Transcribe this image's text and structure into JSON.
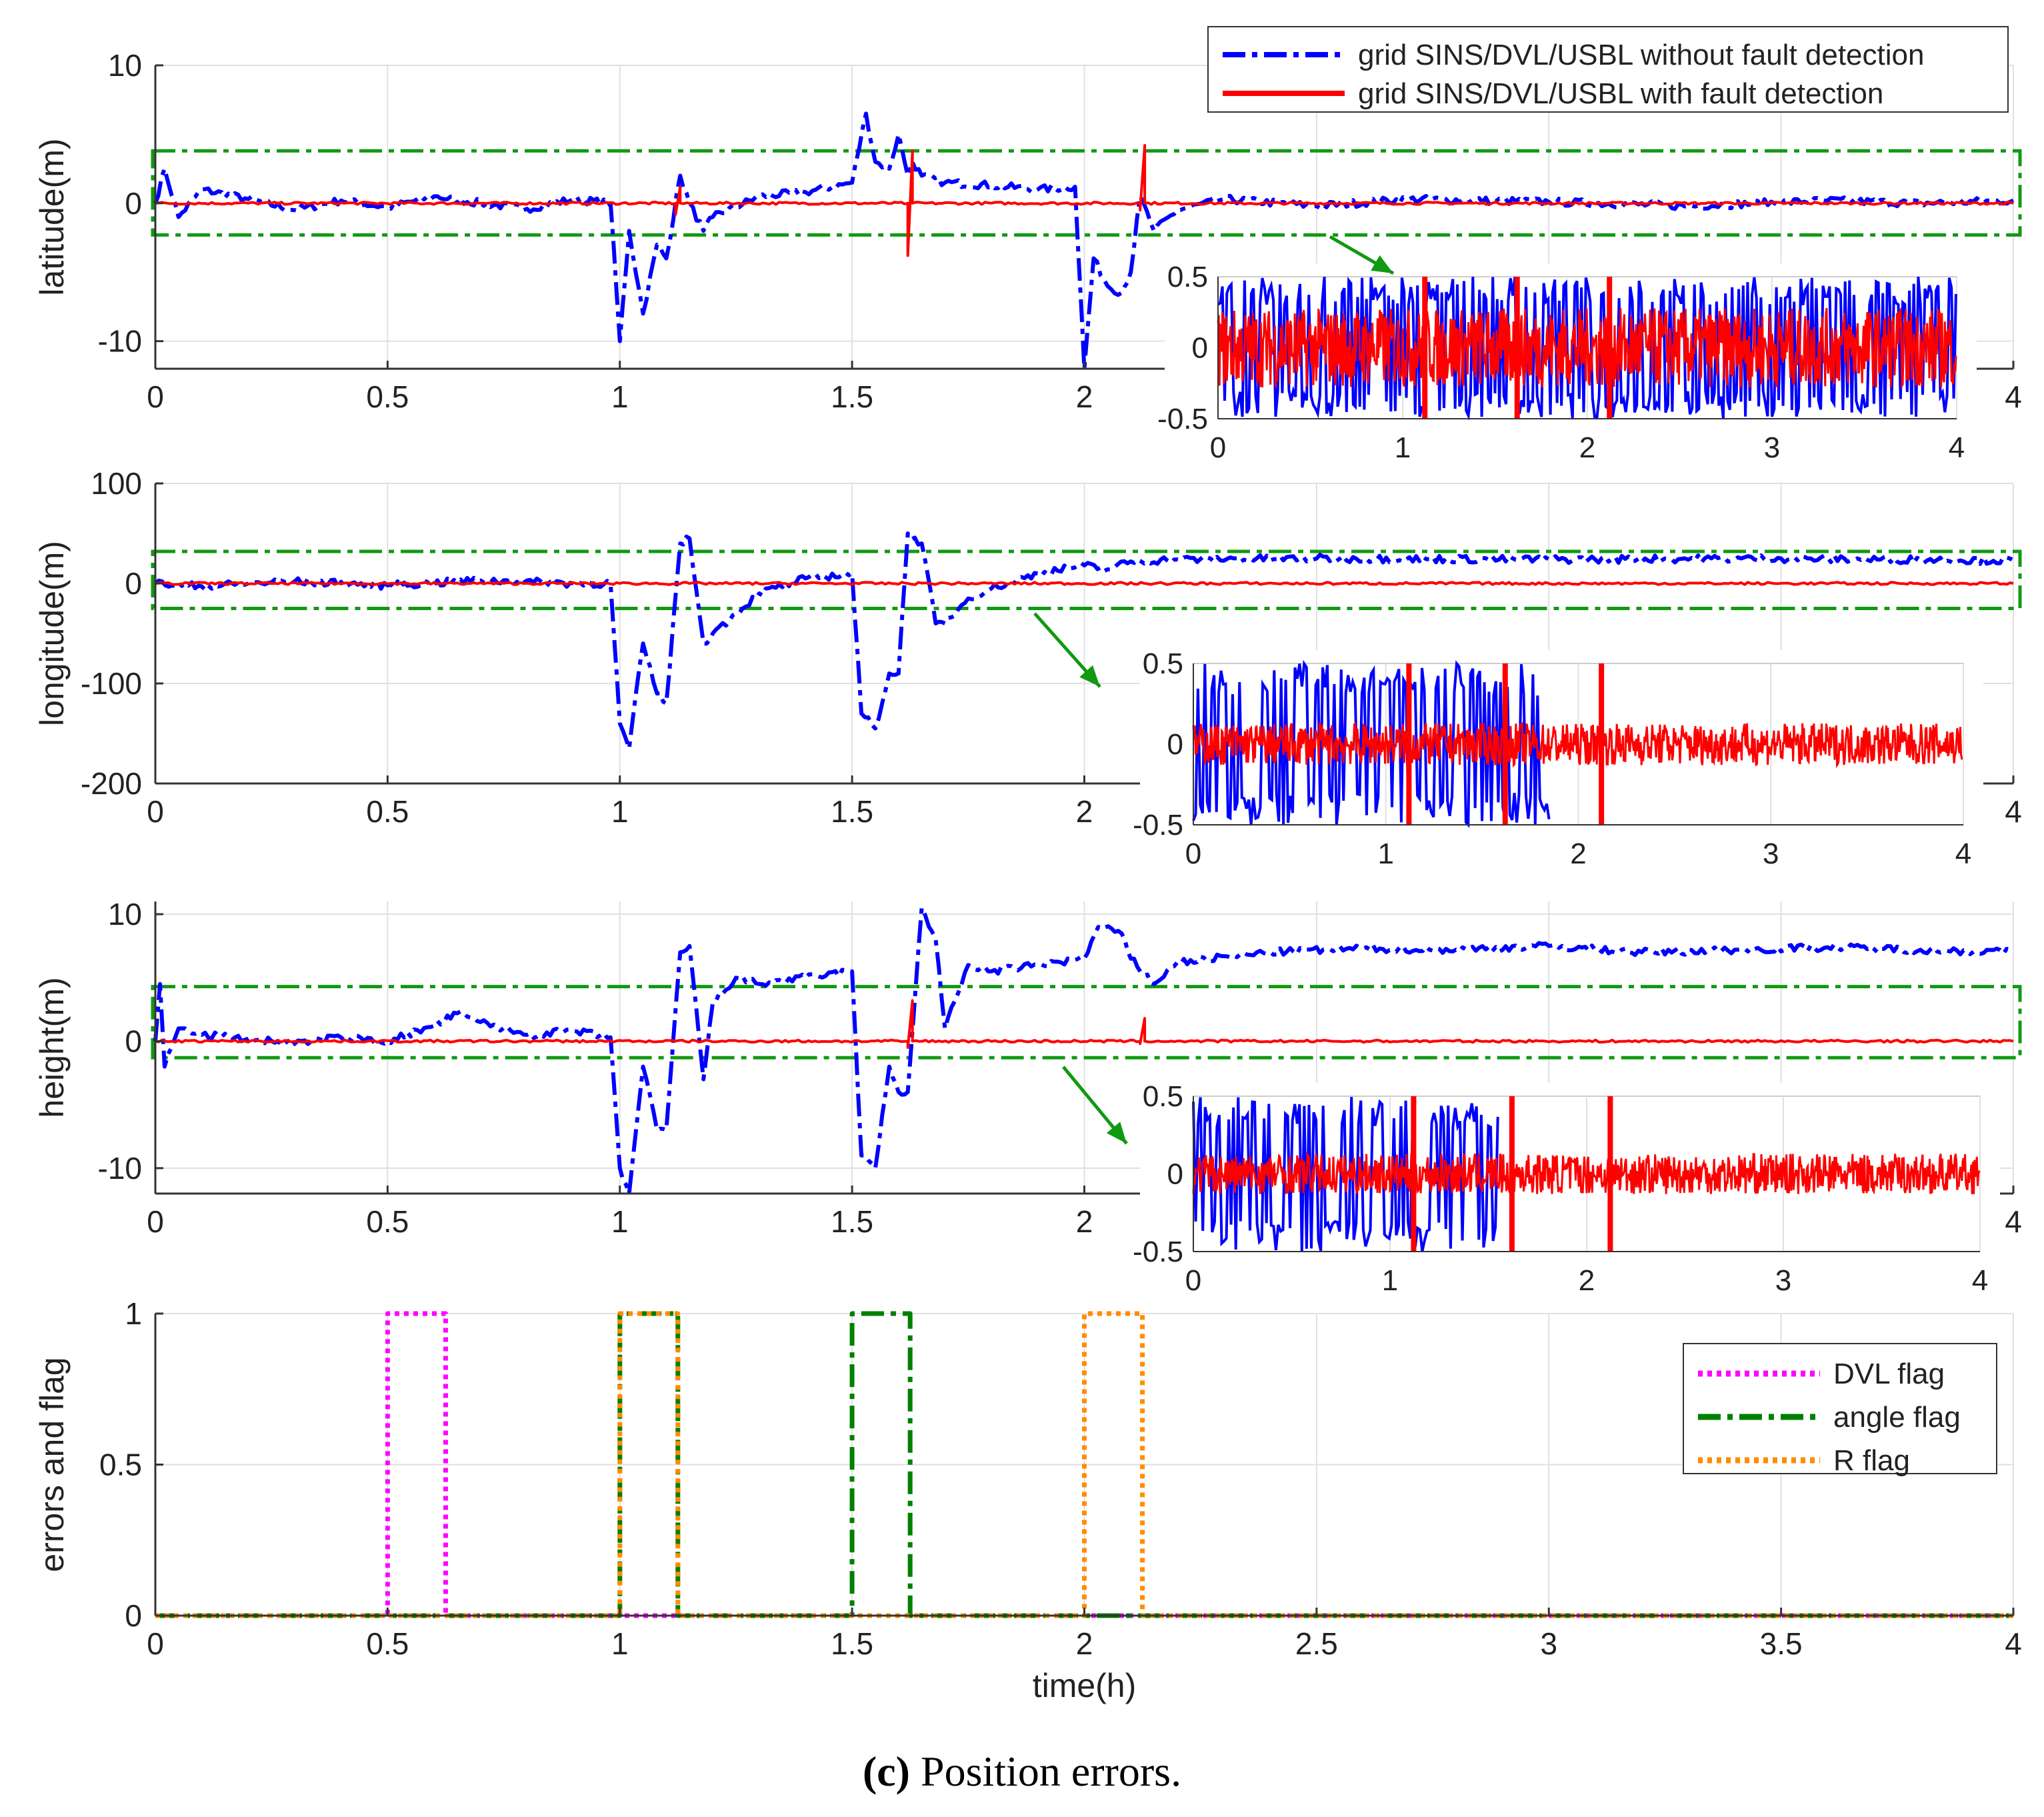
{
  "figure": {
    "caption_label": "(c)",
    "caption_text": "Position errors."
  },
  "colors": {
    "without": "#0000ff",
    "with": "#ff0000",
    "box": "#119911",
    "dvl": "#ff00ff",
    "angle": "#008000",
    "rflag": "#ff8c00",
    "grid": "#e0e0e0"
  },
  "chart_data": [
    {
      "id": "latitude",
      "type": "line",
      "ylabel": "latitude(m)",
      "xlim": [
        0,
        4
      ],
      "ylim": [
        -12,
        10
      ],
      "yticks": [
        -10,
        0,
        10
      ],
      "xticks": [
        0,
        0.5,
        1,
        1.5,
        2,
        2.5,
        3,
        3.5,
        4
      ],
      "xtick_labels": [
        "0",
        "0.5",
        "1",
        "1.5",
        "2",
        "",
        "",
        "",
        "4"
      ],
      "legend": [
        {
          "label": "grid SINS/DVL/USBL without fault detection",
          "color": "#0000ff",
          "style": "dashdot"
        },
        {
          "label": "grid SINS/DVL/USBL with fault detection",
          "color": "#ff0000",
          "style": "solid"
        }
      ],
      "dashed_box_y": [
        -2.3,
        3.8
      ],
      "series": [
        {
          "name": "grid SINS/DVL/USBL without fault detection",
          "color": "#0000ff",
          "style": "dashdot",
          "x": [
            0,
            0.02,
            0.05,
            0.1,
            0.2,
            0.3,
            0.4,
            0.5,
            0.6,
            0.7,
            0.8,
            0.9,
            0.98,
            1.0,
            1.02,
            1.05,
            1.08,
            1.1,
            1.13,
            1.15,
            1.18,
            1.2,
            1.3,
            1.4,
            1.5,
            1.53,
            1.55,
            1.58,
            1.6,
            1.62,
            1.63,
            1.65,
            1.7,
            1.8,
            1.9,
            1.98,
            2.0,
            2.02,
            2.05,
            2.08,
            2.1,
            2.12,
            2.15,
            2.2,
            2.3,
            2.5,
            2.7,
            3.0,
            3.3,
            3.6,
            3.8,
            4.0
          ],
          "y": [
            0,
            2.5,
            -1,
            1,
            0.3,
            -0.5,
            0.2,
            -0.3,
            0.5,
            0,
            -0.4,
            0.3,
            0,
            -10,
            -2,
            -8,
            -3,
            -4,
            2,
            0,
            -2,
            -1,
            0.5,
            0.8,
            1.5,
            6.5,
            3,
            2.5,
            5,
            2,
            3,
            2,
            1.5,
            1.3,
            1.0,
            1.2,
            -12,
            -4,
            -6,
            -6.5,
            -5,
            0.5,
            -2,
            -0.5,
            0.3,
            -0.2,
            0.3,
            0.1,
            -0.2,
            0.2,
            0,
            0.2
          ]
        },
        {
          "name": "grid SINS/DVL/USBL with fault detection",
          "color": "#ff0000",
          "style": "solid",
          "x": [
            0,
            1.12,
            1.12,
            1.13,
            1.13,
            1.62,
            1.62,
            1.63,
            1.63,
            2.12,
            2.12,
            2.13,
            2.13,
            4.0
          ],
          "y": [
            0,
            0,
            -0.8,
            1.2,
            0,
            0,
            -3.8,
            3.8,
            0,
            0,
            -0.5,
            4.2,
            0,
            0
          ]
        }
      ],
      "inset": {
        "xlim": [
          0,
          4
        ],
        "ylim": [
          -0.5,
          0.5
        ],
        "xticks": [
          0,
          1,
          2,
          3,
          4
        ],
        "yticks": [
          -0.5,
          0,
          0.5
        ],
        "ytick_labels": [
          "-0.5",
          "0",
          "0.5"
        ]
      }
    },
    {
      "id": "longitude",
      "type": "line",
      "ylabel": "longitude(m)",
      "xlim": [
        0,
        4
      ],
      "ylim": [
        -200,
        100
      ],
      "yticks": [
        -200,
        -100,
        0,
        100
      ],
      "xticks": [
        0,
        0.5,
        1,
        1.5,
        2,
        2.5,
        3,
        3.5,
        4
      ],
      "xtick_labels": [
        "0",
        "0.5",
        "1",
        "1.5",
        "2",
        "",
        "",
        "",
        "4"
      ],
      "dashed_box_y": [
        -25,
        32
      ],
      "series": [
        {
          "name": "grid SINS/DVL/USBL without fault detection",
          "color": "#0000ff",
          "style": "dashdot",
          "x": [
            0,
            0.1,
            0.2,
            0.3,
            0.5,
            0.7,
            0.9,
            0.98,
            1.0,
            1.02,
            1.05,
            1.08,
            1.1,
            1.13,
            1.15,
            1.18,
            1.2,
            1.25,
            1.3,
            1.4,
            1.5,
            1.52,
            1.55,
            1.58,
            1.6,
            1.62,
            1.65,
            1.68,
            1.7,
            1.75,
            1.8,
            1.9,
            2.0,
            2.05,
            2.1,
            2.2,
            2.5,
            3.0,
            3.5,
            4.0
          ],
          "y": [
            0,
            -3,
            0,
            2,
            -2,
            3,
            0,
            0,
            -140,
            -165,
            -60,
            -110,
            -120,
            40,
            45,
            -60,
            -50,
            -30,
            -10,
            5,
            10,
            -130,
            -145,
            -90,
            -90,
            50,
            40,
            -40,
            -40,
            -15,
            -5,
            10,
            18,
            14,
            22,
            24,
            25,
            24,
            25,
            23
          ]
        },
        {
          "name": "grid SINS/DVL/USBL with fault detection",
          "color": "#ff0000",
          "style": "solid",
          "x": [
            0,
            1.0,
            2.0,
            3.0,
            4.0
          ],
          "y": [
            0,
            0,
            0,
            0,
            0
          ]
        }
      ],
      "inset": {
        "xlim": [
          0,
          4
        ],
        "ylim": [
          -0.5,
          0.5
        ],
        "xticks": [
          0,
          1,
          2,
          3,
          4
        ],
        "yticks": [
          -0.5,
          0,
          0.5
        ],
        "ytick_labels": [
          "-0.5",
          "0",
          "0.5"
        ]
      }
    },
    {
      "id": "height",
      "type": "line",
      "ylabel": "height(m)",
      "xlim": [
        0,
        4
      ],
      "ylim": [
        -12,
        11
      ],
      "yticks": [
        -10,
        0,
        10
      ],
      "xticks": [
        0,
        0.5,
        1,
        1.5,
        2,
        2.5,
        3,
        3.5,
        4
      ],
      "xtick_labels": [
        "0",
        "0.5",
        "1",
        "1.5",
        "2",
        "",
        "",
        "",
        "4"
      ],
      "dashed_box_y": [
        -1.3,
        4.3
      ],
      "series": [
        {
          "name": "grid SINS/DVL/USBL without fault detection",
          "color": "#0000ff",
          "style": "dashdot",
          "x": [
            0,
            0.01,
            0.02,
            0.05,
            0.1,
            0.2,
            0.3,
            0.4,
            0.5,
            0.6,
            0.65,
            0.7,
            0.8,
            0.9,
            0.98,
            1.0,
            1.02,
            1.05,
            1.08,
            1.1,
            1.13,
            1.15,
            1.18,
            1.2,
            1.25,
            1.3,
            1.4,
            1.5,
            1.52,
            1.55,
            1.58,
            1.6,
            1.62,
            1.65,
            1.68,
            1.7,
            1.75,
            1.8,
            1.9,
            2.0,
            2.03,
            2.08,
            2.1,
            2.15,
            2.2,
            2.4,
            2.6,
            2.8,
            3.0,
            3.2,
            3.4,
            3.6,
            3.8,
            4.0
          ],
          "y": [
            0,
            4.5,
            -2,
            1,
            0.5,
            0.2,
            -0.2,
            0.3,
            0,
            1.2,
            2.2,
            1.5,
            0.5,
            0.8,
            0.3,
            -10,
            -12,
            -2,
            -7,
            -7,
            7,
            7.5,
            -3,
            3,
            5,
            4.5,
            5,
            5.5,
            -9,
            -10,
            -2,
            -4,
            -4,
            10.5,
            8,
            1,
            6,
            5.5,
            6,
            6.5,
            9,
            8.5,
            6.5,
            4.5,
            6.2,
            7,
            7.3,
            7.2,
            7.5,
            7,
            7.2,
            7.4,
            7.2,
            7
          ]
        },
        {
          "name": "grid SINS/DVL/USBL with fault detection",
          "color": "#ff0000",
          "style": "solid",
          "x": [
            0,
            1.62,
            1.62,
            1.63,
            1.63,
            2.12,
            2.12,
            2.13,
            2.13,
            4.0
          ],
          "y": [
            0,
            0,
            -0.5,
            3.2,
            0,
            0,
            -0.2,
            1.8,
            0,
            0
          ]
        }
      ],
      "inset": {
        "xlim": [
          0,
          4
        ],
        "ylim": [
          -0.5,
          0.5
        ],
        "xticks": [
          0,
          1,
          2,
          3,
          4
        ],
        "yticks": [
          -0.5,
          0,
          0.5
        ],
        "ytick_labels": [
          "-0.5",
          "0",
          "0.5"
        ]
      }
    },
    {
      "id": "flags",
      "type": "line",
      "ylabel": "errors and flag",
      "xlabel": "time(h)",
      "xlim": [
        0,
        4
      ],
      "ylim": [
        0,
        1
      ],
      "yticks": [
        0,
        0.5,
        1
      ],
      "xticks": [
        0,
        0.5,
        1,
        1.5,
        2,
        2.5,
        3,
        3.5,
        4
      ],
      "xtick_labels": [
        "0",
        "0.5",
        "1",
        "1.5",
        "2",
        "2.5",
        "3",
        "3.5",
        "4"
      ],
      "legend": [
        {
          "label": "DVL flag",
          "color": "#ff00ff",
          "style": "dotted"
        },
        {
          "label": "angle flag",
          "color": "#008000",
          "style": "dashdot"
        },
        {
          "label": "R flag",
          "color": "#ff8c00",
          "style": "dotted"
        }
      ],
      "series": [
        {
          "name": "DVL flag",
          "color": "#ff00ff",
          "style": "dotted",
          "x": [
            0,
            0.5,
            0.5,
            0.625,
            0.625,
            4.0
          ],
          "y": [
            0,
            0,
            1,
            1,
            0,
            0
          ]
        },
        {
          "name": "angle flag",
          "color": "#008000",
          "style": "dashdot",
          "x": [
            0,
            1.0,
            1.0,
            1.125,
            1.125,
            1.5,
            1.5,
            1.625,
            1.625,
            4.0
          ],
          "y": [
            0,
            0,
            1,
            1,
            0,
            0,
            1,
            1,
            0,
            0
          ]
        },
        {
          "name": "R flag",
          "color": "#ff8c00",
          "style": "dotted",
          "x": [
            0,
            1.0,
            1.0,
            1.125,
            1.125,
            2.0,
            2.0,
            2.125,
            2.125,
            4.0
          ],
          "y": [
            0,
            0,
            1,
            1,
            0,
            0,
            1,
            1,
            0,
            0
          ]
        }
      ]
    }
  ]
}
